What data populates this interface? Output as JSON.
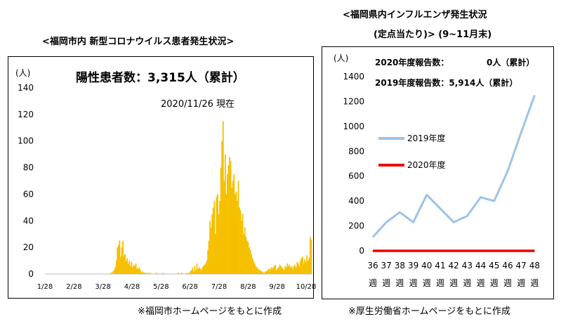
{
  "left": {
    "title": "<福岡市内 新型コロナウイルス患者発生状況>",
    "unit": "(人)",
    "headline": "陽性患者数：3,315人（累計）",
    "date_note": "2020/11/26 現在",
    "source": "※福岡市ホームページをもとに作成",
    "bar_color": "#f5c000"
  },
  "right": {
    "title_line1": "<福岡県内インフルエンザ発生状況",
    "title_line2": "(定点当たり)> (9~11月末)",
    "unit": "(人)",
    "report_2020_label": "2020年度報告数：",
    "report_2020_value": "0人（累計）",
    "report_2019": "2019年度報告数：5,914人（累計）",
    "source": "※厚生労働省ホームページをもとに作成"
  },
  "chart_data": [
    {
      "type": "bar",
      "ylim": [
        0,
        140
      ],
      "yticks": [
        "0",
        "20",
        "40",
        "60",
        "80",
        "100",
        "120",
        "140"
      ],
      "xticks": [
        "1/28",
        "2/28",
        "3/28",
        "4/28",
        "5/28",
        "6/28",
        "7/28",
        "8/28",
        "9/28",
        "10/28"
      ],
      "series": [
        {
          "values": [
            0,
            0,
            0,
            0,
            0,
            0,
            0,
            0,
            0,
            0,
            0,
            0,
            0,
            0,
            0,
            0,
            0,
            0,
            0,
            0,
            0,
            0,
            0,
            0,
            0,
            0,
            0,
            0,
            0,
            0,
            0,
            0,
            0,
            0,
            0,
            0,
            0,
            0,
            0,
            0,
            0,
            0,
            0,
            0,
            0,
            0,
            0,
            0,
            0,
            0,
            0,
            0,
            0,
            0,
            0,
            0,
            0,
            0,
            0,
            0,
            1,
            1,
            2,
            3,
            5,
            10,
            20,
            22,
            25,
            13,
            20,
            25,
            14,
            15,
            10,
            12,
            8,
            10,
            6,
            9,
            5,
            7,
            6,
            8,
            4,
            4,
            5,
            3,
            1,
            2,
            1,
            1,
            1,
            0,
            1,
            0,
            1,
            0,
            0,
            0,
            0,
            0,
            1,
            0,
            0,
            0,
            0,
            0,
            1,
            0,
            0,
            0,
            0,
            0,
            0,
            0,
            0,
            0,
            0,
            0,
            0,
            0,
            1,
            0,
            0,
            1,
            0,
            0,
            0,
            0,
            1,
            0,
            1,
            2,
            3,
            5,
            2,
            6,
            3,
            8,
            4,
            5,
            4,
            3,
            5,
            6,
            7,
            8,
            10,
            18,
            25,
            40,
            35,
            45,
            50,
            55,
            30,
            58,
            60,
            45,
            55,
            80,
            100,
            115,
            70,
            90,
            60,
            75,
            82,
            88,
            85,
            65,
            70,
            75,
            60,
            62,
            55,
            70,
            50,
            48,
            40,
            45,
            30,
            35,
            28,
            25,
            24,
            20,
            18,
            15,
            12,
            10,
            8,
            6,
            5,
            4,
            3,
            3,
            2,
            2,
            1,
            1,
            2,
            2,
            3,
            4,
            3,
            5,
            4,
            5,
            6,
            7,
            3,
            4,
            5,
            7,
            6,
            5,
            4,
            3,
            6,
            5,
            8,
            6,
            7,
            5,
            6,
            4,
            6,
            7,
            5,
            9,
            8,
            6,
            10,
            12,
            13,
            8,
            11,
            9,
            14,
            10,
            12,
            28,
            26
          ]
        }
      ]
    },
    {
      "type": "line",
      "ylim": [
        0,
        1400
      ],
      "yticks": [
        "0",
        "200",
        "400",
        "600",
        "800",
        "1000",
        "1200",
        "1400"
      ],
      "categories": [
        "36",
        "37",
        "38",
        "39",
        "40",
        "41",
        "42",
        "43",
        "44",
        "45",
        "46",
        "47",
        "48"
      ],
      "category_suffix": "週",
      "series": [
        {
          "name": "2019年度",
          "color": "#9cc3e6",
          "values": [
            110,
            230,
            310,
            230,
            450,
            340,
            230,
            280,
            430,
            400,
            640,
            950,
            1250
          ]
        },
        {
          "name": "2020年度",
          "color": "#ee0000",
          "values": [
            0,
            0,
            0,
            0,
            0,
            0,
            0,
            0,
            0,
            0,
            0,
            0,
            0
          ]
        }
      ]
    }
  ]
}
